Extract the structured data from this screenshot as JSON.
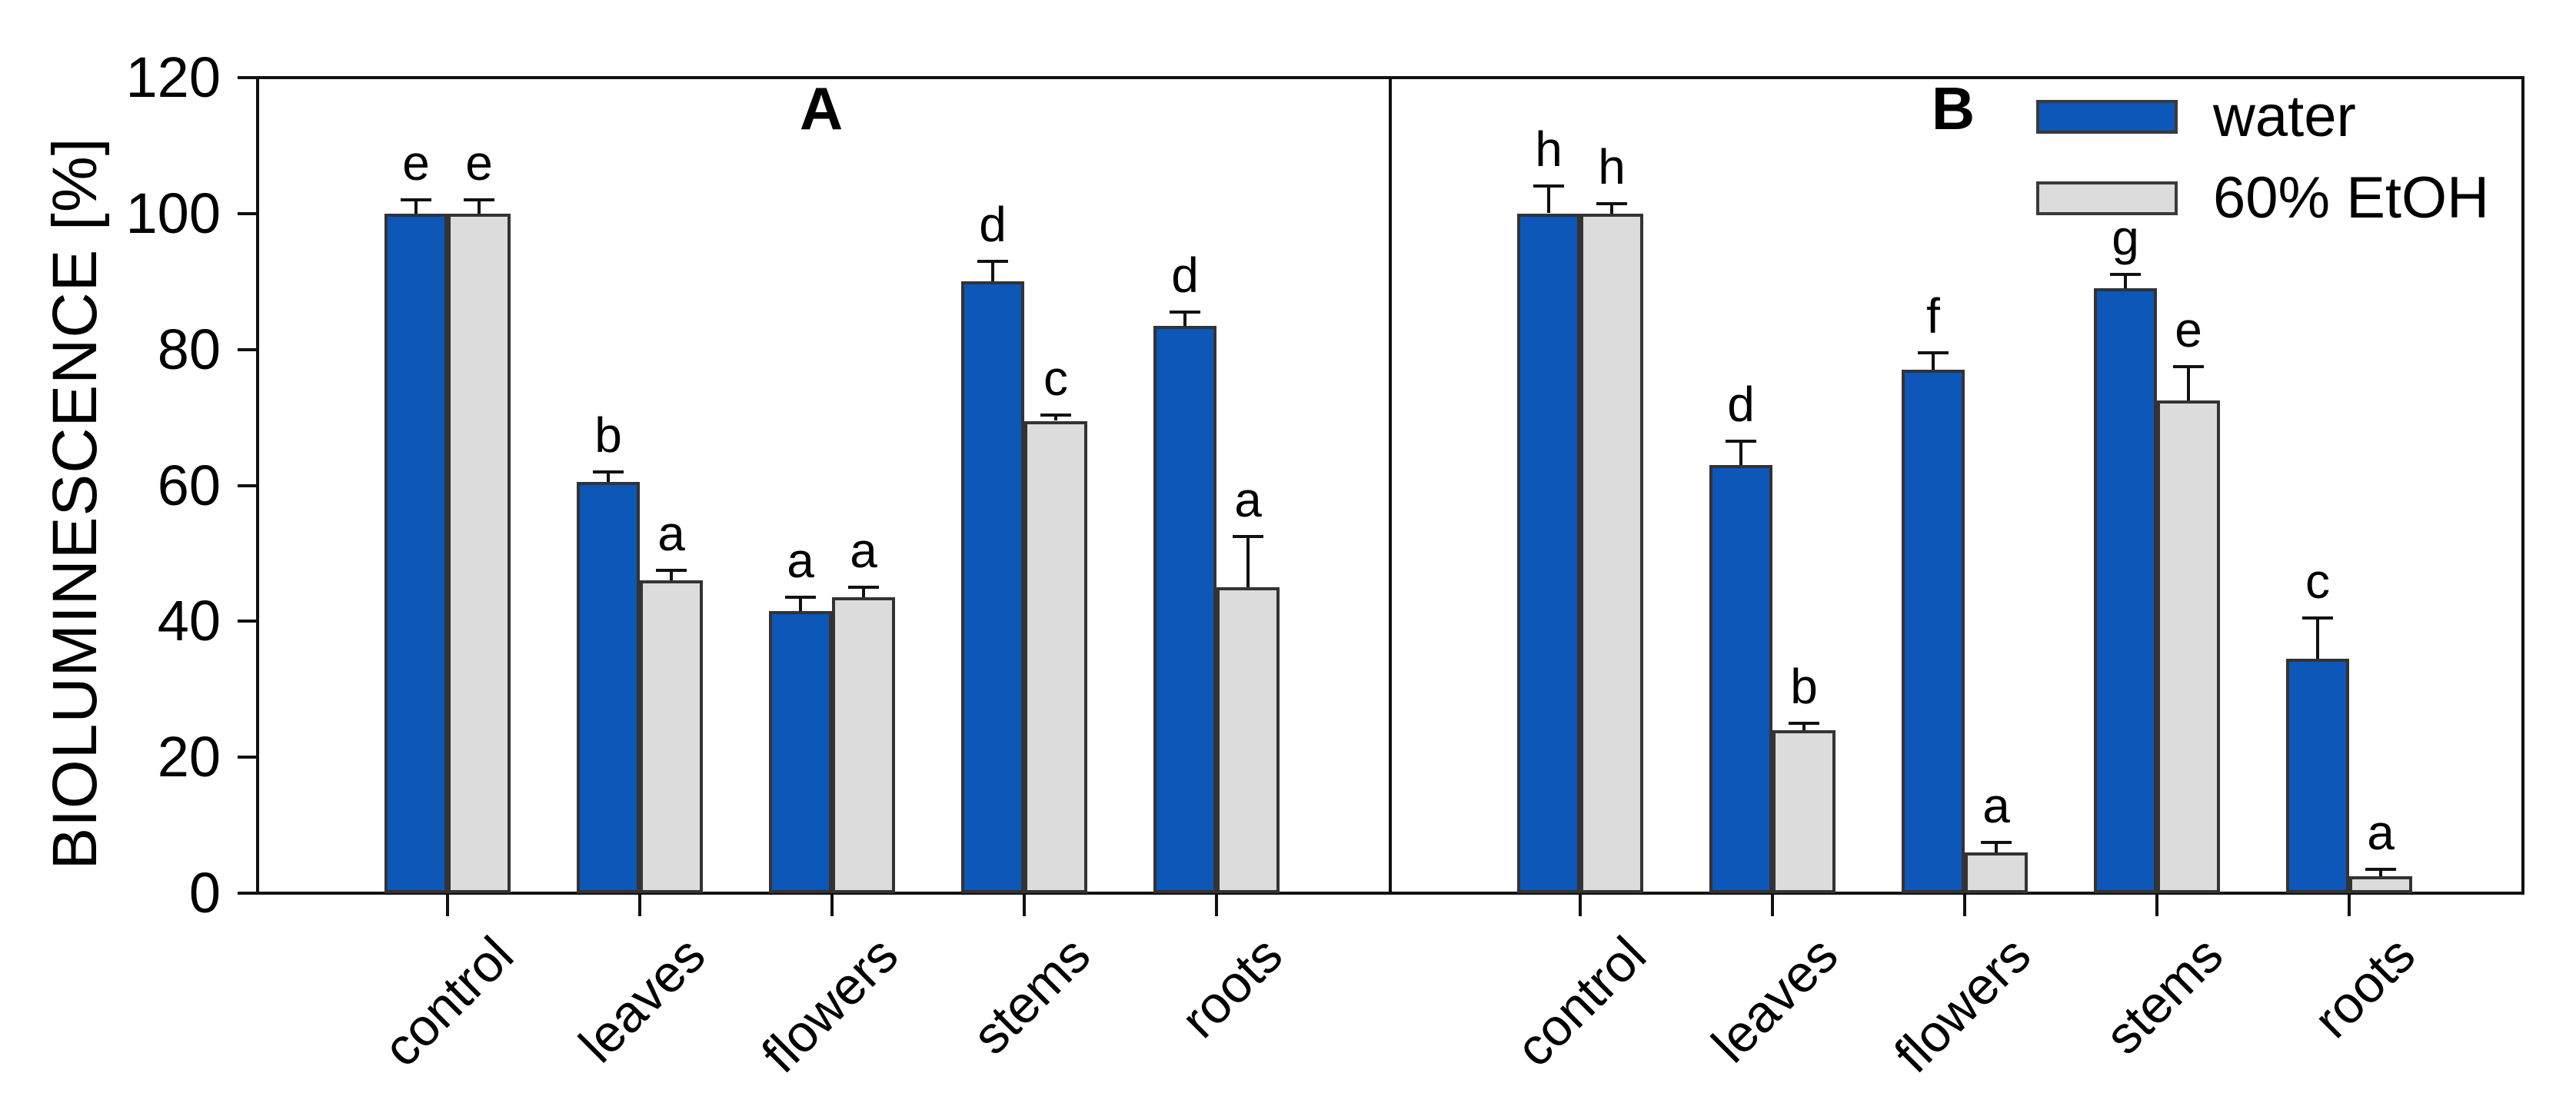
{
  "figure": {
    "background": "#ffffff"
  },
  "chart_data": {
    "type": "bar",
    "title": "",
    "ylabel": "BIOLUMINESCENCE [%]",
    "xlabel": "",
    "ylim": [
      0,
      120
    ],
    "yticks": [
      0,
      20,
      40,
      60,
      80,
      100,
      120
    ],
    "grid": false,
    "legend_position": "top-right-inside",
    "categories": [
      "control",
      "leaves",
      "flowers",
      "stems",
      "roots"
    ],
    "legend": [
      {
        "name": "water",
        "color": "#0c57b8"
      },
      {
        "name": "60% EtOH",
        "color": "#dcdcdc"
      }
    ],
    "colors": {
      "water": "#0c57b8",
      "etoh": "#dcdcdc",
      "bar_border": "#333333",
      "axis": "#111111"
    },
    "panels": [
      {
        "label": "A",
        "series": [
          {
            "name": "water",
            "values": [
              100,
              60.5,
              41.5,
              90,
              83.5
            ],
            "errors": [
              2,
              1.5,
              2,
              3,
              2
            ],
            "letters": [
              "e",
              "b",
              "a",
              "d",
              "d"
            ]
          },
          {
            "name": "60% EtOH",
            "values": [
              100,
              46,
              43.5,
              69.5,
              45
            ],
            "errors": [
              2,
              1.5,
              1.5,
              0.8,
              7.5
            ],
            "letters": [
              "e",
              "a",
              "a",
              "c",
              "a"
            ]
          }
        ]
      },
      {
        "label": "B",
        "series": [
          {
            "name": "water",
            "values": [
              100,
              63,
              77,
              89,
              34.5
            ],
            "errors": [
              4,
              3.5,
              2.5,
              2,
              6
            ],
            "letters": [
              "h",
              "d",
              "f",
              "g",
              "c"
            ]
          },
          {
            "name": "60% EtOH",
            "values": [
              100,
              24,
              6,
              72.5,
              2.5
            ],
            "errors": [
              1.5,
              1,
              1.5,
              5,
              1
            ],
            "letters": [
              "h",
              "b",
              "a",
              "e",
              "a"
            ]
          }
        ]
      }
    ]
  }
}
